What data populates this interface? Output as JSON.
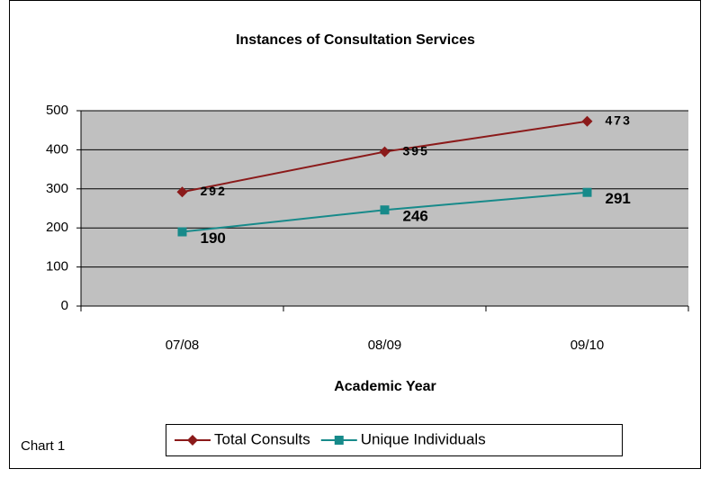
{
  "chart_data": {
    "type": "line",
    "title": "Instances of Consultation Services",
    "x_label": "Academic Year",
    "annotation": "Chart 1",
    "categories": [
      "07/08",
      "08/09",
      "09/10"
    ],
    "series": [
      {
        "name": "Total Consults",
        "color": "#8b1a1a",
        "marker": "diamond",
        "values": [
          292,
          395,
          473
        ]
      },
      {
        "name": "Unique Individuals",
        "color": "#178a8a",
        "marker": "square",
        "values": [
          190,
          246,
          291
        ]
      }
    ],
    "ylim": [
      0,
      500
    ],
    "yticks": [
      0,
      100,
      200,
      300,
      400,
      500
    ],
    "grid": true,
    "legend": "bottom"
  }
}
